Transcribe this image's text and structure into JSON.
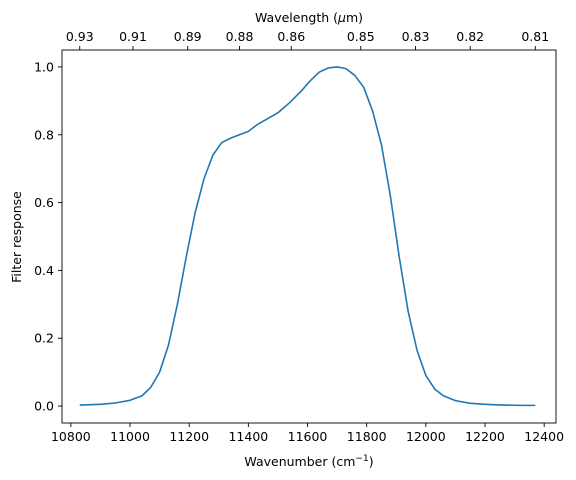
{
  "chart_data": {
    "type": "line",
    "title": "",
    "xlabel": "Wavenumber (cm",
    "xlabel_sup": "−1",
    "xlabel_end": ")",
    "ylabel": "Filter response",
    "top_xlabel": "Wavelength (",
    "top_xlabel_mu": "μ",
    "top_xlabel_end": "m)",
    "xlim": [
      10770,
      12440
    ],
    "ylim": [
      -0.05,
      1.05
    ],
    "x_ticks": [
      10800,
      11000,
      11200,
      11400,
      11600,
      11800,
      12000,
      12200,
      12400
    ],
    "y_ticks": [
      0.0,
      0.2,
      0.4,
      0.6,
      0.8,
      1.0
    ],
    "y_tick_labels": [
      "0.0",
      "0.2",
      "0.4",
      "0.6",
      "0.8",
      "1.0"
    ],
    "top_ticks": [
      {
        "label": "0.93",
        "x": 10830
      },
      {
        "label": "0.91",
        "x": 11010
      },
      {
        "label": "0.89",
        "x": 11195
      },
      {
        "label": "0.88",
        "x": 11370
      },
      {
        "label": "0.86",
        "x": 11545
      },
      {
        "label": "0.85",
        "x": 11780
      },
      {
        "label": "0.83",
        "x": 11965
      },
      {
        "label": "0.82",
        "x": 12150
      },
      {
        "label": "0.81",
        "x": 12370
      }
    ],
    "grid": false,
    "line_color": "#1f77b4",
    "series": [
      {
        "x": [
          10830,
          10900,
          10950,
          11000,
          11040,
          11070,
          11100,
          11130,
          11160,
          11190,
          11220,
          11250,
          11280,
          11310,
          11340,
          11370,
          11400,
          11430,
          11460,
          11500,
          11540,
          11580,
          11610,
          11640,
          11670,
          11700,
          11730,
          11760,
          11790,
          11820,
          11850,
          11880,
          11910,
          11940,
          11970,
          12000,
          12030,
          12060,
          12100,
          12150,
          12200,
          12260,
          12320,
          12370
        ],
        "y": [
          0.003,
          0.005,
          0.009,
          0.017,
          0.03,
          0.055,
          0.1,
          0.18,
          0.3,
          0.44,
          0.57,
          0.67,
          0.74,
          0.777,
          0.79,
          0.8,
          0.81,
          0.83,
          0.845,
          0.865,
          0.895,
          0.93,
          0.96,
          0.985,
          0.997,
          1.0,
          0.995,
          0.975,
          0.94,
          0.87,
          0.77,
          0.62,
          0.44,
          0.28,
          0.165,
          0.09,
          0.05,
          0.03,
          0.016,
          0.008,
          0.005,
          0.003,
          0.002,
          0.002
        ]
      }
    ]
  }
}
